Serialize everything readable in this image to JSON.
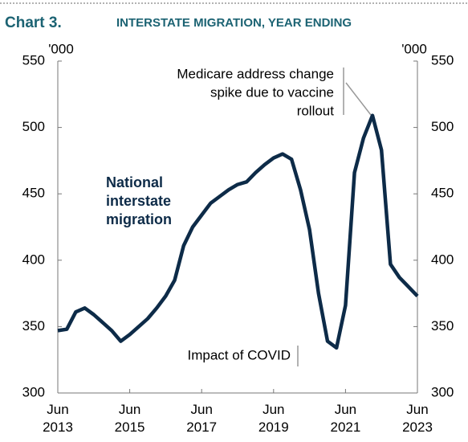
{
  "chart_data": {
    "type": "line",
    "chart_number": "Chart 3.",
    "title": "INTERSTATE MIGRATION, YEAR ENDING",
    "y_unit_label": "'000",
    "y2_unit_label": "'000",
    "categories": [
      "Jun 2013",
      null,
      null,
      null,
      null,
      null,
      null,
      null,
      "Jun 2015",
      null,
      null,
      null,
      null,
      null,
      null,
      null,
      "Jun 2017",
      null,
      null,
      null,
      null,
      null,
      null,
      null,
      "Jun 2019",
      null,
      null,
      null,
      null,
      null,
      null,
      null,
      "Jun 2021",
      null,
      null,
      null,
      null,
      null,
      null,
      null,
      "Jun 2023"
    ],
    "series": [
      {
        "name": "National interstate migration",
        "name_lines": [
          "National",
          "interstate",
          "migration"
        ],
        "color": "#0d2b48",
        "values": [
          347,
          348,
          361,
          364,
          359,
          353,
          347,
          339,
          344,
          350,
          356,
          364,
          373,
          385,
          411,
          425,
          434,
          443,
          448,
          453,
          457,
          459,
          466,
          472,
          477,
          480,
          476,
          453,
          423,
          375,
          339,
          334,
          366,
          466,
          492,
          509,
          483,
          397,
          387,
          380,
          373
        ]
      }
    ],
    "ylim": [
      300,
      550
    ],
    "yticks": [
      300,
      350,
      400,
      450,
      500,
      550
    ],
    "y2lim": [
      300,
      550
    ],
    "y2ticks": [
      300,
      350,
      400,
      450,
      500,
      550
    ],
    "annotations": [
      {
        "lines": [
          "Medicare address change",
          "spike due to vaccine",
          "rollout"
        ]
      },
      {
        "lines": [
          "Impact of COVID"
        ]
      }
    ]
  }
}
